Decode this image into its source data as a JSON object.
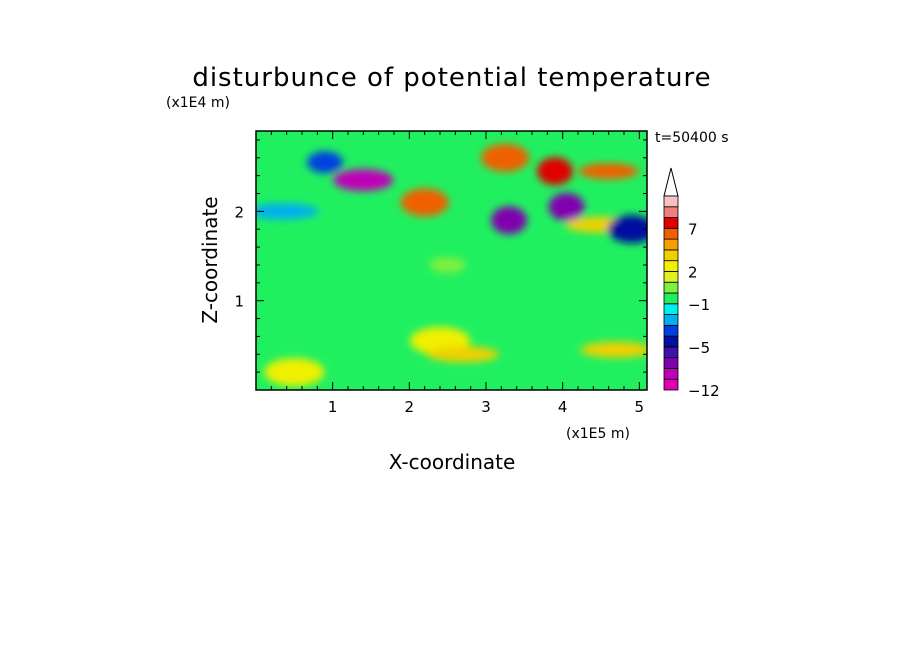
{
  "chart_data": {
    "type": "heatmap",
    "title": "disturbunce of potential temperature",
    "time_label": "t=50400 s",
    "xlabel": "X-coordinate",
    "ylabel": "Z-coordinate",
    "x_unit": "(x1E5 m)",
    "y_unit": "(x1E4 m)",
    "xlim": [
      0,
      5.1
    ],
    "ylim": [
      0,
      2.9
    ],
    "x_ticks": [
      1,
      2,
      3,
      4,
      5
    ],
    "y_ticks": [
      1,
      2
    ],
    "x_tick_labels": [
      "1",
      "2",
      "3",
      "4",
      "5"
    ],
    "y_tick_labels": [
      "1",
      "2"
    ],
    "colorbar": {
      "levels": [
        -12,
        -10,
        -8,
        -6,
        -5,
        -4,
        -3,
        -2,
        -1,
        0,
        1,
        2,
        3,
        4,
        5,
        7,
        9,
        11
      ],
      "tick_labels": [
        {
          "value": 7,
          "label": "7"
        },
        {
          "value": 2,
          "label": "2"
        },
        {
          "value": -1,
          "label": "−1"
        },
        {
          "value": -5,
          "label": "−5"
        },
        {
          "value": -12,
          "label": "−12"
        }
      ],
      "colors": [
        "#e000b0",
        "#c000b8",
        "#8000b0",
        "#4010a8",
        "#0010a0",
        "#0040e0",
        "#00b0f0",
        "#00f0f0",
        "#20f060",
        "#80f040",
        "#e0f020",
        "#f0f000",
        "#f0d000",
        "#f8a000",
        "#f06000",
        "#e00000",
        "#f08080",
        "#f8c0c0"
      ]
    },
    "field_features": [
      {
        "x": 1.4,
        "z": 2.35,
        "value": -10
      },
      {
        "x": 0.9,
        "z": 2.55,
        "value": -4
      },
      {
        "x": 2.2,
        "z": 2.1,
        "value": 5
      },
      {
        "x": 3.3,
        "z": 1.9,
        "value": -8
      },
      {
        "x": 3.25,
        "z": 2.6,
        "value": 5
      },
      {
        "x": 3.9,
        "z": 2.45,
        "value": 8
      },
      {
        "x": 4.05,
        "z": 2.05,
        "value": -8
      },
      {
        "x": 4.6,
        "z": 2.45,
        "value": 6
      },
      {
        "x": 4.5,
        "z": 1.85,
        "value": 3
      },
      {
        "x": 4.9,
        "z": 1.8,
        "value": -5
      },
      {
        "x": 0.35,
        "z": 2.0,
        "value": -3
      },
      {
        "x": 2.5,
        "z": 1.4,
        "value": 0
      },
      {
        "x": 2.4,
        "z": 0.55,
        "value": 2
      },
      {
        "x": 2.7,
        "z": 0.4,
        "value": 3
      },
      {
        "x": 0.5,
        "z": 0.2,
        "value": 2
      },
      {
        "x": 4.7,
        "z": 0.45,
        "value": 3
      }
    ]
  }
}
